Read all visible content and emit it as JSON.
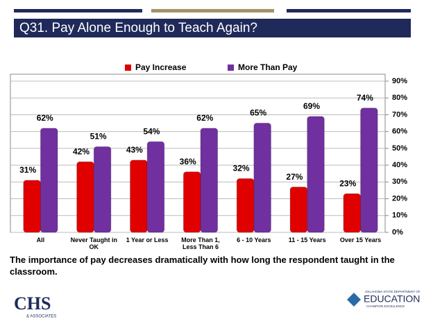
{
  "chart_data": {
    "type": "bar",
    "title": "Q31. Pay Alone Enough to Teach Again?",
    "categories": [
      "All",
      "Never Taught in OK",
      "1 Year or Less",
      "More Than 1, Less Than 6",
      "6 - 10 Years",
      "11 - 15 Years",
      "Over 15 Years"
    ],
    "series": [
      {
        "name": "Pay Increase",
        "color": "#e00000",
        "values": [
          31,
          42,
          43,
          36,
          32,
          27,
          23
        ],
        "value_labels": [
          "31%",
          "42%",
          "43%",
          "36%",
          "32%",
          "27%",
          "23%"
        ]
      },
      {
        "name": "More Than Pay",
        "color": "#7030a0",
        "values": [
          62,
          51,
          54,
          62,
          65,
          69,
          74
        ],
        "value_labels": [
          "62%",
          "51%",
          "54%",
          "62%",
          "65%",
          "69%",
          "74%"
        ]
      }
    ],
    "ylim": [
      0,
      90
    ],
    "yticks": [
      {
        "value": 0,
        "label": "0%"
      },
      {
        "value": 10,
        "label": "10%"
      },
      {
        "value": 20,
        "label": "20%"
      },
      {
        "value": 30,
        "label": "30%"
      },
      {
        "value": 40,
        "label": "40%"
      },
      {
        "value": 50,
        "label": "50%"
      },
      {
        "value": 60,
        "label": "60%"
      },
      {
        "value": 70,
        "label": "70%"
      },
      {
        "value": 80,
        "label": "80%"
      },
      {
        "value": 90,
        "label": "90%"
      }
    ],
    "grid": true,
    "legend": "top",
    "annotation": "The importance of pay decreases dramatically with how long the respondent taught in the classroom."
  },
  "footer": {
    "left_logo": "CHS",
    "left_logo_sub": "& ASSOCIATES",
    "right_logo_top": "OKLAHOMA STATE DEPARTMENT OF",
    "right_logo": "EDUCATION",
    "right_logo_sub": "CHAMPION EXCELLENCE"
  }
}
